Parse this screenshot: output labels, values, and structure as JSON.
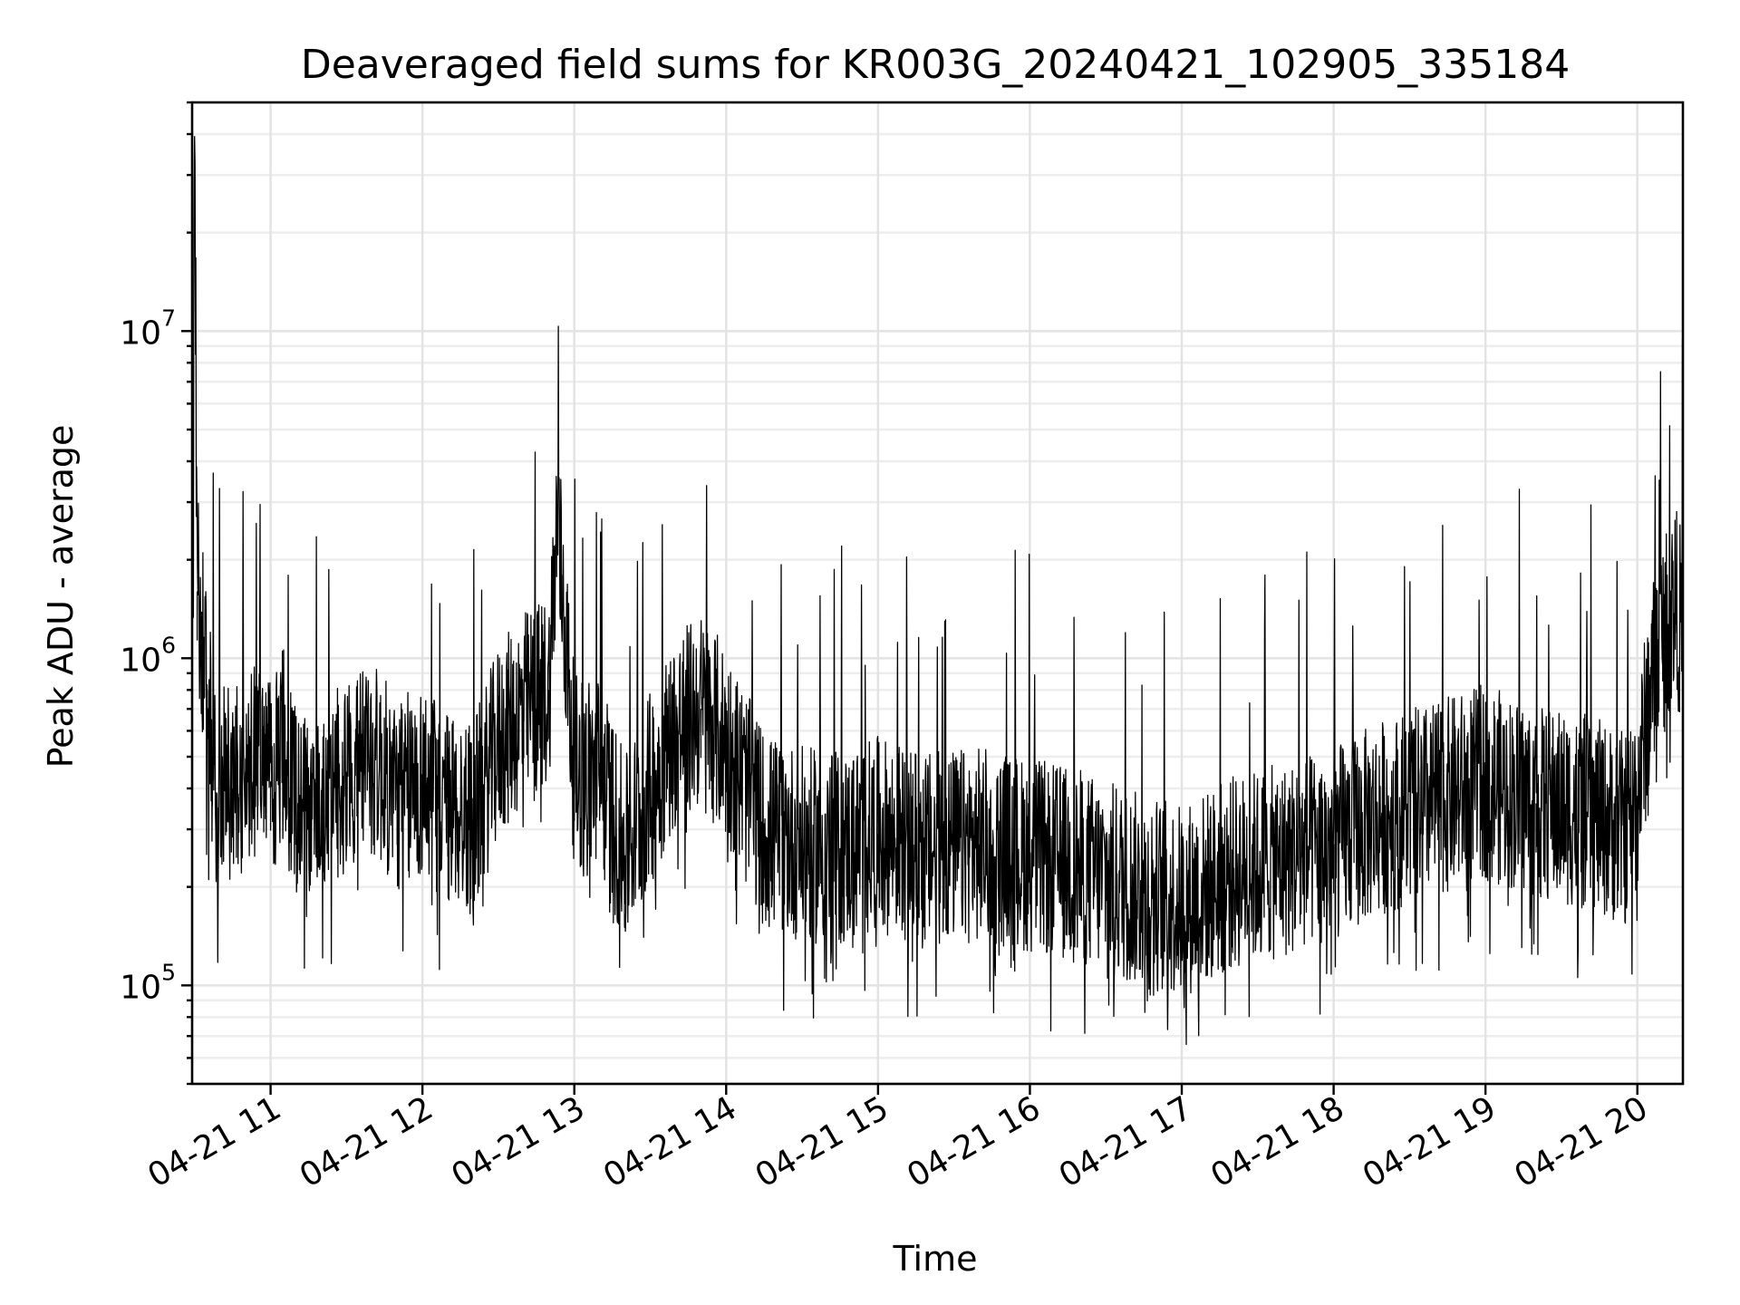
{
  "chart_data": {
    "type": "line",
    "title": "Deaveraged field sums for KR003G_20240421_102905_335184",
    "xlabel": "Time",
    "ylabel": "Peak ADU - average",
    "x_range": [
      "2024-04-21 10:29",
      "2024-04-21 20:18"
    ],
    "ylim": [
      50000,
      50000000
    ],
    "yscale": "log",
    "grid": true,
    "x_ticks": [
      {
        "value": "2024-04-21 11:00",
        "label": "04-21 11"
      },
      {
        "value": "2024-04-21 12:00",
        "label": "04-21 12"
      },
      {
        "value": "2024-04-21 13:00",
        "label": "04-21 13"
      },
      {
        "value": "2024-04-21 14:00",
        "label": "04-21 14"
      },
      {
        "value": "2024-04-21 15:00",
        "label": "04-21 15"
      },
      {
        "value": "2024-04-21 16:00",
        "label": "04-21 16"
      },
      {
        "value": "2024-04-21 17:00",
        "label": "04-21 17"
      },
      {
        "value": "2024-04-21 18:00",
        "label": "04-21 18"
      },
      {
        "value": "2024-04-21 19:00",
        "label": "04-21 19"
      },
      {
        "value": "2024-04-21 20:00",
        "label": "04-21 20"
      }
    ],
    "y_ticks": [
      {
        "value": 100000,
        "base": "10",
        "exp": "5"
      },
      {
        "value": 1000000,
        "base": "10",
        "exp": "6"
      },
      {
        "value": 10000000,
        "base": "10",
        "exp": "7"
      }
    ],
    "series": [
      {
        "color": "#000000",
        "x": [
          "2024-04-21 10:29",
          "2024-04-21 10:30",
          "2024-04-21 10:31",
          "2024-04-21 10:33",
          "2024-04-21 10:35",
          "2024-04-21 10:37",
          "2024-04-21 10:39",
          "2024-04-21 10:41",
          "2024-04-21 10:45",
          "2024-04-21 10:50",
          "2024-04-21 10:55",
          "2024-04-21 11:00",
          "2024-04-21 11:05",
          "2024-04-21 11:10",
          "2024-04-21 11:20",
          "2024-04-21 11:30",
          "2024-04-21 11:40",
          "2024-04-21 11:50",
          "2024-04-21 12:00",
          "2024-04-21 12:10",
          "2024-04-21 12:20",
          "2024-04-21 12:30",
          "2024-04-21 12:40",
          "2024-04-21 12:50",
          "2024-04-21 12:53",
          "2024-04-21 12:55",
          "2024-04-21 13:00",
          "2024-04-21 13:10",
          "2024-04-21 13:20",
          "2024-04-21 13:30",
          "2024-04-21 13:40",
          "2024-04-21 13:50",
          "2024-04-21 14:00",
          "2024-04-21 14:15",
          "2024-04-21 14:30",
          "2024-04-21 14:45",
          "2024-04-21 15:00",
          "2024-04-21 15:20",
          "2024-04-21 15:40",
          "2024-04-21 16:00",
          "2024-04-21 16:20",
          "2024-04-21 16:40",
          "2024-04-21 17:00",
          "2024-04-21 17:20",
          "2024-04-21 17:40",
          "2024-04-21 18:00",
          "2024-04-21 18:20",
          "2024-04-21 18:40",
          "2024-04-21 19:00",
          "2024-04-21 19:20",
          "2024-04-21 19:40",
          "2024-04-21 19:55",
          "2024-04-21 20:00",
          "2024-04-21 20:05",
          "2024-04-21 20:10",
          "2024-04-21 20:15",
          "2024-04-21 20:18"
        ],
        "y": [
          1400000,
          38000000,
          1600000,
          1200000,
          800000,
          500000,
          350000,
          420000,
          400000,
          450000,
          500000,
          420000,
          550000,
          380000,
          350000,
          450000,
          500000,
          380000,
          420000,
          350000,
          320000,
          550000,
          700000,
          800000,
          2500000,
          1800000,
          450000,
          450000,
          250000,
          400000,
          600000,
          700000,
          550000,
          300000,
          270000,
          260000,
          290000,
          260000,
          270000,
          250000,
          230000,
          200000,
          180000,
          220000,
          240000,
          270000,
          330000,
          370000,
          420000,
          360000,
          340000,
          300000,
          380000,
          800000,
          1200000,
          1500000,
          1200000
        ]
      }
    ]
  }
}
